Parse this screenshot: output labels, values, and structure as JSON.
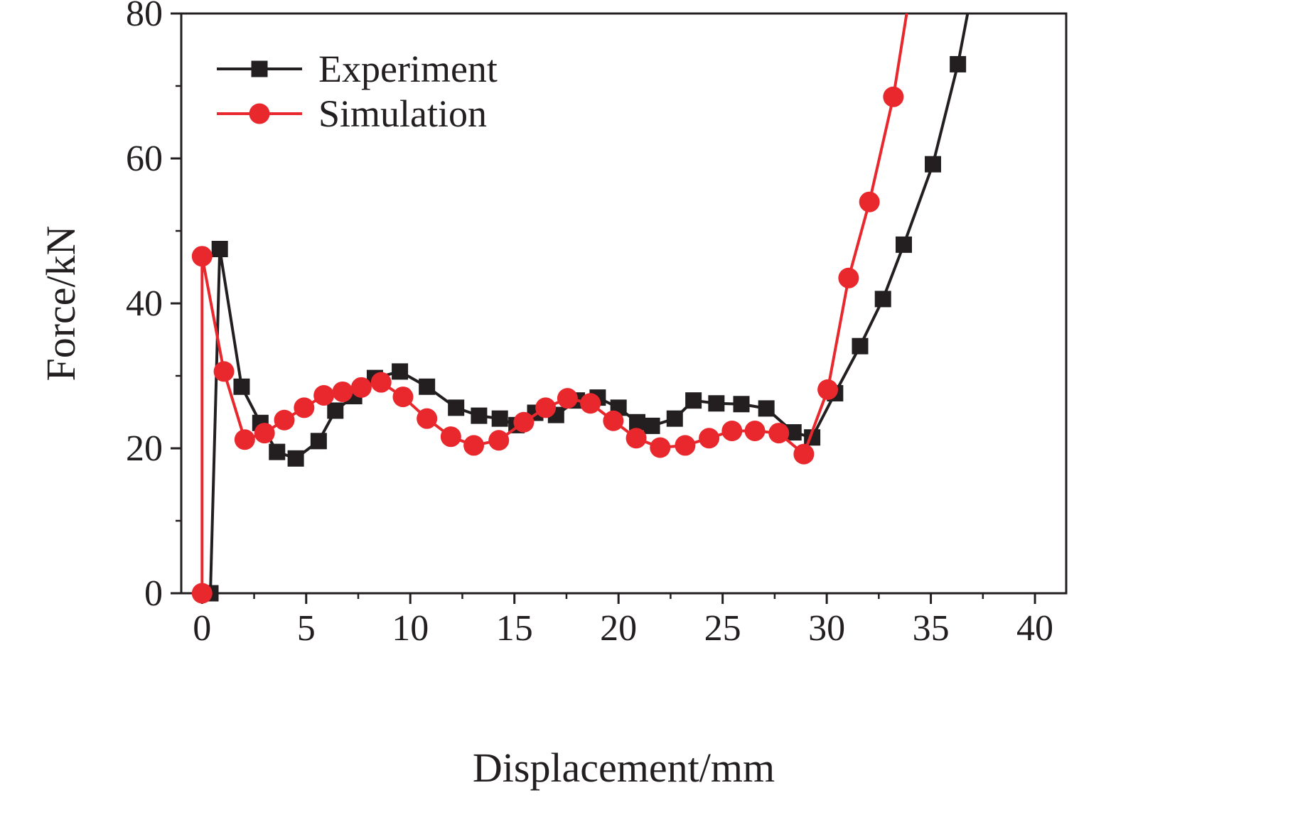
{
  "colors": {
    "background": "#ffffff",
    "axis": "#231f20",
    "experiment": "#231f20",
    "simulation": "#e8282c"
  },
  "chart_data": {
    "type": "line",
    "title": "",
    "xlabel": "Displacement/mm",
    "ylabel": "Force/kN",
    "xlim": [
      -1,
      41.5
    ],
    "ylim": [
      0,
      80
    ],
    "x_ticks": [
      0,
      5,
      10,
      15,
      20,
      25,
      30,
      35,
      40
    ],
    "y_ticks": [
      0,
      20,
      40,
      60,
      80
    ],
    "x_minor_step": 2.5,
    "y_minor_step": 10,
    "grid": false,
    "legend_position": "top-left",
    "legend": [
      "Experiment",
      "Simulation"
    ],
    "series": [
      {
        "name": "Experiment",
        "color": "#231f20",
        "marker": "square",
        "points": [
          [
            0.4,
            0
          ],
          [
            0.85,
            47.5
          ],
          [
            1.9,
            28.5
          ],
          [
            2.8,
            23.5
          ],
          [
            3.6,
            19.5
          ],
          [
            4.5,
            18.6
          ],
          [
            5.6,
            21.0
          ],
          [
            6.4,
            25.2
          ],
          [
            7.3,
            27.2
          ],
          [
            8.3,
            29.7
          ],
          [
            9.5,
            30.6
          ],
          [
            10.8,
            28.5
          ],
          [
            12.2,
            25.6
          ],
          [
            13.3,
            24.5
          ],
          [
            14.3,
            24.1
          ],
          [
            15.1,
            23.2
          ],
          [
            16.0,
            24.9
          ],
          [
            17.0,
            24.6
          ],
          [
            18.0,
            26.6
          ],
          [
            19.0,
            27.0
          ],
          [
            20.0,
            25.6
          ],
          [
            20.9,
            23.6
          ],
          [
            21.6,
            23.1
          ],
          [
            22.7,
            24.1
          ],
          [
            23.6,
            26.6
          ],
          [
            24.7,
            26.2
          ],
          [
            25.9,
            26.1
          ],
          [
            27.1,
            25.5
          ],
          [
            28.4,
            22.2
          ],
          [
            29.3,
            21.5
          ],
          [
            30.4,
            27.6
          ],
          [
            31.6,
            34.1
          ],
          [
            32.7,
            40.6
          ],
          [
            33.7,
            48.1
          ],
          [
            35.1,
            59.2
          ],
          [
            36.3,
            73.0
          ],
          [
            36.9,
            82.0
          ]
        ]
      },
      {
        "name": "Simulation",
        "color": "#e8282c",
        "marker": "circle",
        "points": [
          [
            0,
            0
          ],
          [
            0,
            46.5
          ],
          [
            1.05,
            30.6
          ],
          [
            2.05,
            21.2
          ],
          [
            3.0,
            22.1
          ],
          [
            3.95,
            23.9
          ],
          [
            4.9,
            25.6
          ],
          [
            5.85,
            27.3
          ],
          [
            6.75,
            27.8
          ],
          [
            7.65,
            28.4
          ],
          [
            8.6,
            29.1
          ],
          [
            9.65,
            27.1
          ],
          [
            10.8,
            24.1
          ],
          [
            11.95,
            21.6
          ],
          [
            13.05,
            20.4
          ],
          [
            14.25,
            21.1
          ],
          [
            15.45,
            23.6
          ],
          [
            16.5,
            25.6
          ],
          [
            17.55,
            26.9
          ],
          [
            18.65,
            26.2
          ],
          [
            19.75,
            23.8
          ],
          [
            20.85,
            21.4
          ],
          [
            22.0,
            20.1
          ],
          [
            23.2,
            20.4
          ],
          [
            24.35,
            21.4
          ],
          [
            25.45,
            22.4
          ],
          [
            26.55,
            22.4
          ],
          [
            27.7,
            22.1
          ],
          [
            28.9,
            19.2
          ],
          [
            30.05,
            28.1
          ],
          [
            31.05,
            43.5
          ],
          [
            32.05,
            54.0
          ],
          [
            33.2,
            68.5
          ],
          [
            33.95,
            82.0
          ]
        ]
      }
    ]
  }
}
